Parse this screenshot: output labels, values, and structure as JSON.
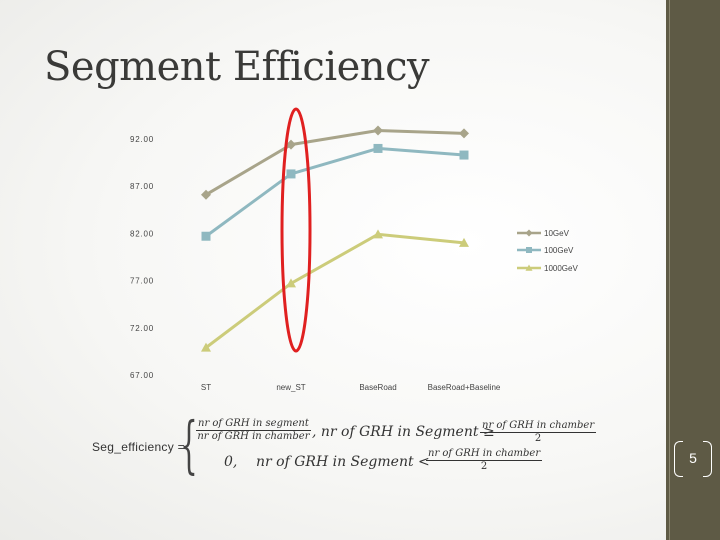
{
  "slide": {
    "title": "Segment Efficiency",
    "page_number": "5",
    "formula": {
      "lhs": "Seg_efficiency =",
      "case1_num": "nr of GRH in segment",
      "case1_den": "nr of GRH in chamber",
      "case1_cond": ", nr of GRH in Segment ≥",
      "case1_rhs_num": "nr of GRH in chamber",
      "case1_rhs_den": "2",
      "case2_val": "0,",
      "case2_cond": "nr of GRH in Segment <",
      "case2_rhs_num": "nr of GRH in chamber",
      "case2_rhs_den": "2"
    }
  },
  "colors": {
    "series_10gev": "#a8a48a",
    "series_100gev": "#8fb8c0",
    "series_1000gev": "#cccc7a",
    "highlight": "#e02020",
    "sidebar": "#5e5a45"
  },
  "chart_data": {
    "type": "line",
    "categories": [
      "ST",
      "new_ST",
      "BaseRoad",
      "BaseRoad+Baseline"
    ],
    "series": [
      {
        "name": "10GeV",
        "values": [
          86.1,
          91.4,
          92.9,
          92.6
        ],
        "marker": "diamond"
      },
      {
        "name": "100GeV",
        "values": [
          81.7,
          88.3,
          91.0,
          90.3
        ],
        "marker": "square"
      },
      {
        "name": "1000GeV",
        "values": [
          69.9,
          76.7,
          81.9,
          81.0
        ],
        "marker": "triangle"
      }
    ],
    "y_ticks": [
      "92.00",
      "87.00",
      "82.00",
      "77.00",
      "72.00",
      "67.00"
    ],
    "ylim": [
      67,
      92
    ],
    "legend_position": "right",
    "grid": false,
    "annotation": "red ellipse highlighting new_ST"
  }
}
